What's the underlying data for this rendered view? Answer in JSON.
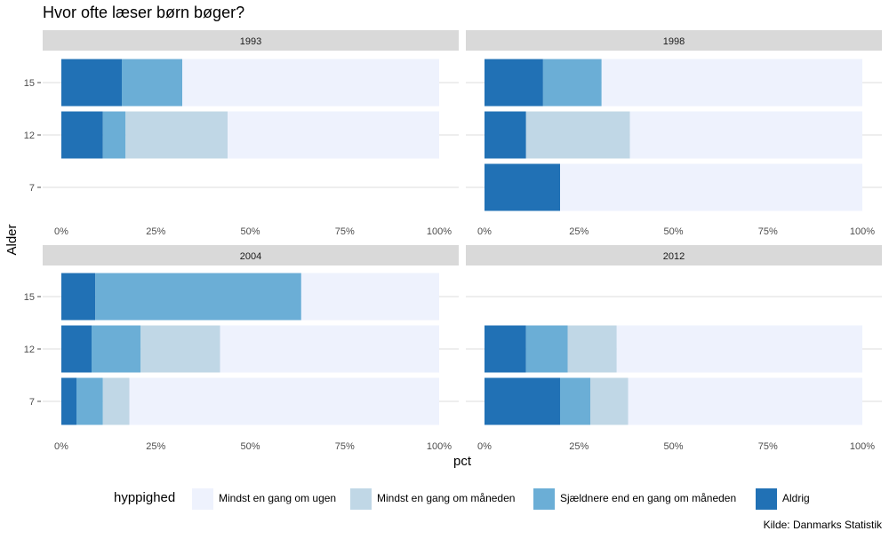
{
  "title": "Hvor ofte læser børn bøger?",
  "caption": "Kilde: Danmarks Statistik",
  "colors": {
    "panel_strip": "#d9d9d9",
    "gridline": "#dedede",
    "categories": [
      "#eef2fd",
      "#c0d7e6",
      "#6baed6",
      "#2171b5"
    ]
  },
  "chart_data": {
    "type": "bar",
    "orientation": "horizontal",
    "stacked": true,
    "xlabel": "pct",
    "ylabel": "Alder",
    "xlim": [
      0,
      1
    ],
    "x_ticks": [
      "0%",
      "25%",
      "50%",
      "75%",
      "100%"
    ],
    "y_categories": [
      "15",
      "12",
      "7"
    ],
    "legend": {
      "title": "hyppighed",
      "position": "bottom",
      "entries": [
        "Mindst en gang om ugen",
        "Mindst en gang om måneden",
        "Sjældnere end en gang om måneden",
        "Aldrig"
      ]
    },
    "stack_order": [
      "Aldrig",
      "Sjældnere end en gang om måneden",
      "Mindst en gang om måneden",
      "Mindst en gang om ugen"
    ],
    "panels": [
      {
        "year": "1993",
        "bars": [
          {
            "age": "15",
            "values": {
              "Aldrig": 0.16,
              "Sjældnere end en gang om måneden": 0.16,
              "Mindst en gang om måneden": 0.0,
              "Mindst en gang om ugen": 0.68
            }
          },
          {
            "age": "12",
            "values": {
              "Aldrig": 0.11,
              "Sjældnere end en gang om måneden": 0.06,
              "Mindst en gang om måneden": 0.27,
              "Mindst en gang om ugen": 0.56
            }
          }
        ]
      },
      {
        "year": "1998",
        "bars": [
          {
            "age": "15",
            "values": {
              "Aldrig": 0.155,
              "Sjældnere end en gang om måneden": 0.155,
              "Mindst en gang om måneden": 0.0,
              "Mindst en gang om ugen": 0.69
            }
          },
          {
            "age": "12",
            "values": {
              "Aldrig": 0.11,
              "Sjældnere end en gang om måneden": 0.0,
              "Mindst en gang om måneden": 0.275,
              "Mindst en gang om ugen": 0.615
            }
          },
          {
            "age": "7",
            "values": {
              "Aldrig": 0.2,
              "Sjældnere end en gang om måneden": 0.0,
              "Mindst en gang om måneden": 0.0,
              "Mindst en gang om ugen": 0.8
            }
          }
        ]
      },
      {
        "year": "2004",
        "bars": [
          {
            "age": "15",
            "values": {
              "Aldrig": 0.09,
              "Sjældnere end en gang om måneden": 0.545,
              "Mindst en gang om måneden": 0.0,
              "Mindst en gang om ugen": 0.365
            }
          },
          {
            "age": "12",
            "values": {
              "Aldrig": 0.08,
              "Sjældnere end en gang om måneden": 0.13,
              "Mindst en gang om måneden": 0.21,
              "Mindst en gang om ugen": 0.58
            }
          },
          {
            "age": "7",
            "values": {
              "Aldrig": 0.04,
              "Sjældnere end en gang om måneden": 0.07,
              "Mindst en gang om måneden": 0.07,
              "Mindst en gang om ugen": 0.82
            }
          }
        ]
      },
      {
        "year": "2012",
        "bars": [
          {
            "age": "12",
            "values": {
              "Aldrig": 0.11,
              "Sjældnere end en gang om måneden": 0.11,
              "Mindst en gang om måneden": 0.13,
              "Mindst en gang om ugen": 0.65
            }
          },
          {
            "age": "7",
            "values": {
              "Aldrig": 0.2,
              "Sjældnere end en gang om måneden": 0.08,
              "Mindst en gang om måneden": 0.1,
              "Mindst en gang om ugen": 0.62
            }
          }
        ]
      }
    ]
  }
}
